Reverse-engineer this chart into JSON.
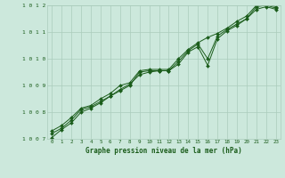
{
  "title": "Graphe pression niveau de la mer (hPa)",
  "background_color": "#cce8dc",
  "grid_color": "#aaccbb",
  "line_color": "#1a5c1a",
  "xlim": [
    -0.5,
    23.5
  ],
  "ylim": [
    1007,
    1012
  ],
  "xticks": [
    0,
    1,
    2,
    3,
    4,
    5,
    6,
    7,
    8,
    9,
    10,
    11,
    12,
    13,
    14,
    15,
    16,
    17,
    18,
    19,
    20,
    21,
    22,
    23
  ],
  "yticks": [
    1007,
    1008,
    1009,
    1010,
    1011,
    1012
  ],
  "series": [
    [
      1007.2,
      1007.4,
      1007.7,
      1008.1,
      1008.2,
      1008.4,
      1008.6,
      1008.8,
      1009.0,
      1009.5,
      1009.55,
      1009.55,
      1009.55,
      1009.9,
      1010.3,
      1010.55,
      1010.0,
      1010.85,
      1011.1,
      1011.3,
      1011.5,
      1011.95,
      1012.0,
      1011.9
    ],
    [
      1007.05,
      1007.35,
      1007.6,
      1008.0,
      1008.15,
      1008.35,
      1008.6,
      1008.85,
      1009.05,
      1009.4,
      1009.5,
      1009.55,
      1009.55,
      1009.8,
      1010.25,
      1010.45,
      1009.75,
      1010.75,
      1011.05,
      1011.25,
      1011.5,
      1011.85,
      1011.95,
      1011.85
    ],
    [
      1007.3,
      1007.5,
      1007.8,
      1008.15,
      1008.25,
      1008.5,
      1008.7,
      1009.0,
      1009.1,
      1009.55,
      1009.6,
      1009.6,
      1009.6,
      1010.0,
      1010.35,
      1010.6,
      1010.8,
      1010.95,
      1011.15,
      1011.4,
      1011.6,
      1012.0,
      1012.05,
      1011.95
    ]
  ]
}
